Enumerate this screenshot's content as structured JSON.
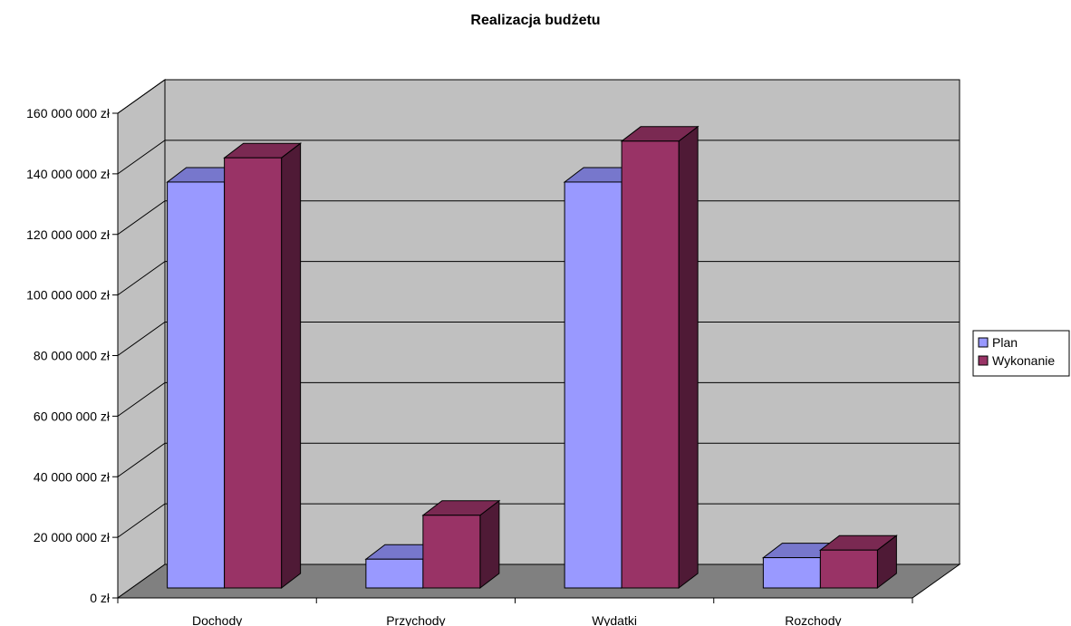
{
  "chart_data": {
    "type": "bar",
    "title": "Realizacja budżetu",
    "categories": [
      "Dochody",
      "Przychody",
      "Wydatki",
      "Rozchody"
    ],
    "series": [
      {
        "name": "Plan",
        "values": [
          134000000,
          9500000,
          134000000,
          10000000
        ],
        "color": "#9999ff",
        "top_color": "#7777cc",
        "side_color": "#5f5fa0"
      },
      {
        "name": "Wykonanie",
        "values": [
          142000000,
          24000000,
          147500000,
          12500000
        ],
        "color": "#993366",
        "top_color": "#7a2952",
        "side_color": "#4f1a36"
      }
    ],
    "ylim": [
      0,
      160000000
    ],
    "yticks": [
      0,
      20000000,
      40000000,
      60000000,
      80000000,
      100000000,
      120000000,
      140000000,
      160000000
    ],
    "ytick_labels": [
      "0 zł",
      "20 000 000 zł",
      "40 000 000 zł",
      "60 000 000 zł",
      "80 000 000 zł",
      "100 000 000 zł",
      "120 000 000 zł",
      "140 000 000 zł",
      "160 000 000 zł"
    ],
    "xlabel": "",
    "ylabel": "",
    "grid": true,
    "legend_position": "right",
    "wall_color": "#c0c0c0",
    "floor_color": "#808080"
  }
}
